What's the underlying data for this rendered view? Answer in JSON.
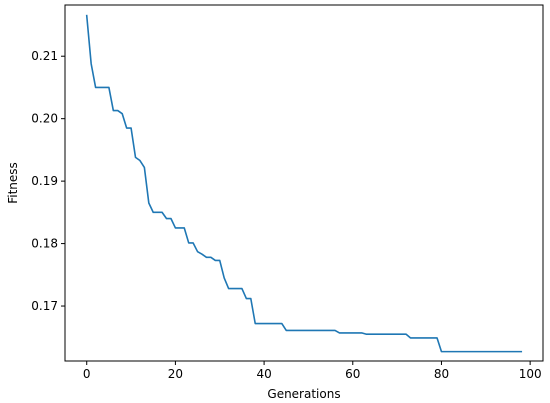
{
  "chart_data": {
    "type": "line",
    "title": "",
    "xlabel": "Generations",
    "ylabel": "Fitness",
    "xlim": [
      -4.9,
      102.9
    ],
    "ylim": [
      0.1612,
      0.2182
    ],
    "xticks": [
      0,
      20,
      40,
      60,
      80,
      100
    ],
    "xtick_labels": [
      "0",
      "20",
      "40",
      "60",
      "80",
      "100"
    ],
    "yticks": [
      0.17,
      0.18,
      0.19,
      0.2,
      0.21
    ],
    "ytick_labels": [
      "0.17",
      "0.18",
      "0.19",
      "0.20",
      "0.21"
    ],
    "grid": false,
    "legend": "none",
    "series": [
      {
        "color": "#1f77b4",
        "x": [
          0,
          1,
          2,
          3,
          4,
          5,
          6,
          7,
          8,
          9,
          10,
          11,
          12,
          13,
          14,
          15,
          16,
          17,
          18,
          19,
          20,
          21,
          22,
          23,
          24,
          25,
          26,
          27,
          28,
          29,
          30,
          31,
          32,
          33,
          34,
          35,
          36,
          37,
          38,
          39,
          40,
          41,
          42,
          43,
          44,
          45,
          46,
          47,
          48,
          49,
          50,
          51,
          52,
          53,
          54,
          55,
          56,
          57,
          58,
          59,
          60,
          61,
          62,
          63,
          64,
          65,
          66,
          67,
          68,
          69,
          70,
          71,
          72,
          73,
          74,
          75,
          76,
          77,
          78,
          79,
          80,
          81,
          82,
          83,
          84,
          85,
          86,
          87,
          88,
          89,
          90,
          91,
          92,
          93,
          94,
          95,
          96,
          97,
          98
        ],
        "y": [
          0.2165,
          0.2088,
          0.205,
          0.205,
          0.205,
          0.205,
          0.2013,
          0.2013,
          0.2008,
          0.1985,
          0.1985,
          0.1938,
          0.1933,
          0.1922,
          0.1865,
          0.185,
          0.185,
          0.185,
          0.184,
          0.184,
          0.1825,
          0.1825,
          0.1825,
          0.1801,
          0.1801,
          0.1787,
          0.1783,
          0.1778,
          0.1778,
          0.1773,
          0.1773,
          0.1745,
          0.1728,
          0.1728,
          0.1728,
          0.1728,
          0.1712,
          0.1712,
          0.1672,
          0.1672,
          0.1672,
          0.1672,
          0.1672,
          0.1672,
          0.1672,
          0.1661,
          0.1661,
          0.1661,
          0.1661,
          0.1661,
          0.1661,
          0.1661,
          0.1661,
          0.1661,
          0.1661,
          0.1661,
          0.1661,
          0.1657,
          0.1657,
          0.1657,
          0.1657,
          0.1657,
          0.1657,
          0.1655,
          0.1655,
          0.1655,
          0.1655,
          0.1655,
          0.1655,
          0.1655,
          0.1655,
          0.1655,
          0.1655,
          0.1649,
          0.1649,
          0.1649,
          0.1649,
          0.1649,
          0.1649,
          0.1649,
          0.1627,
          0.1627,
          0.1627,
          0.1627,
          0.1627,
          0.1627,
          0.1627,
          0.1627,
          0.1627,
          0.1627,
          0.1627,
          0.1627,
          0.1627,
          0.1627,
          0.1627,
          0.1627,
          0.1627,
          0.1627,
          0.1627
        ]
      }
    ]
  }
}
